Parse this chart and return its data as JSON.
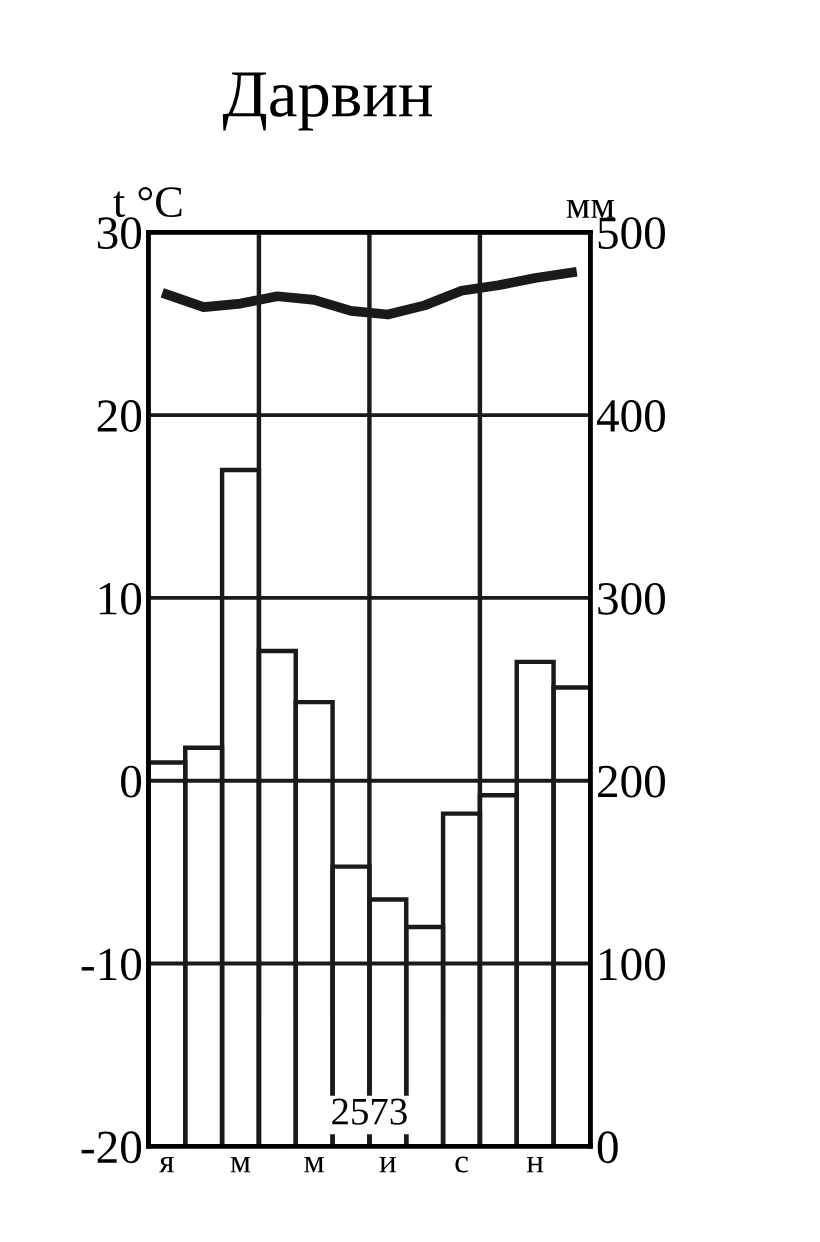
{
  "chart_data": {
    "type": "bar",
    "title": "Дарвин",
    "ylabel": "t °C",
    "y2label": "мм",
    "categories": [
      "я",
      null,
      "м",
      null,
      "м",
      null,
      "и",
      null,
      "с",
      null,
      "н",
      null
    ],
    "series": [
      {
        "axis": "y2",
        "color": "#1a1a1a",
        "values": [
          210,
          218,
          370,
          271,
          243,
          153,
          135,
          120,
          182,
          192,
          265,
          251
        ]
      },
      {
        "type": "line",
        "axis": "y",
        "color": "#1a1a1a",
        "values": [
          26.6,
          25.9,
          26.1,
          26.5,
          26.3,
          25.7,
          25.5,
          26.0,
          26.8,
          27.1,
          27.5,
          27.8
        ]
      }
    ],
    "ylim": [
      -20,
      30
    ],
    "yticks": [
      -20,
      -10,
      0,
      10,
      20,
      30
    ],
    "y2lim": [
      0,
      500
    ],
    "y2ticks": [
      0,
      100,
      200,
      300,
      400,
      500
    ],
    "annotations": [
      "2573"
    ],
    "grid": "y",
    "legend": false,
    "marker": "none",
    "line_style": "solid"
  }
}
